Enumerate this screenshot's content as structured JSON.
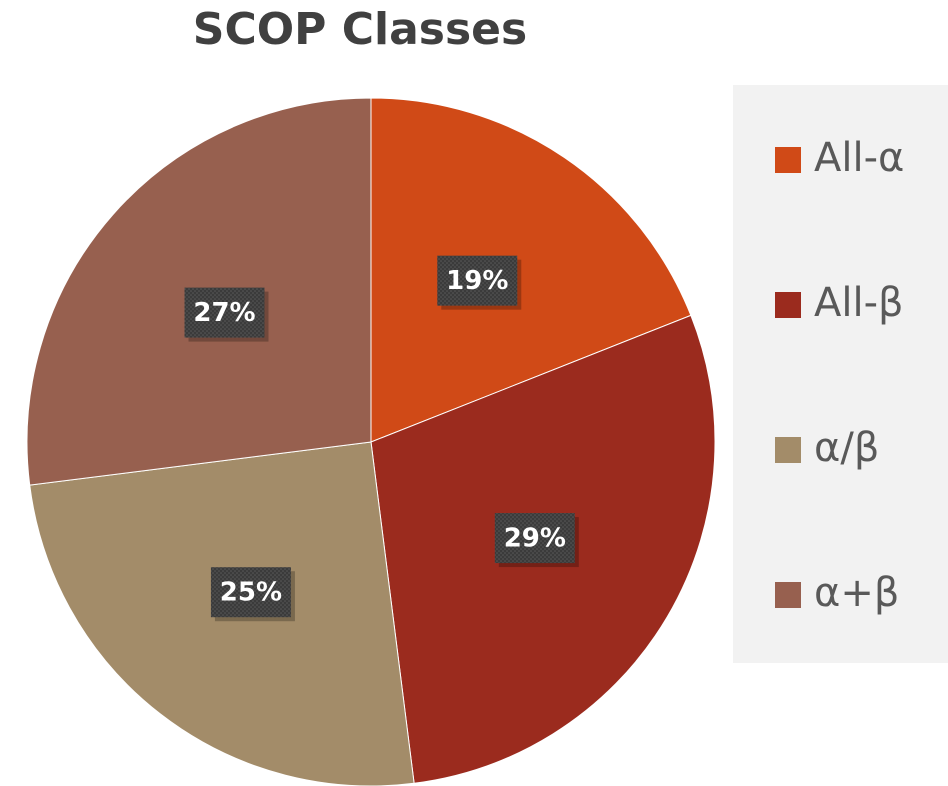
{
  "chart_data": {
    "type": "pie",
    "title": "SCOP Classes",
    "categories": [
      "All-α",
      "All-β",
      "α/β",
      "α+β"
    ],
    "values": [
      19,
      29,
      25,
      27
    ],
    "value_labels": [
      "19%",
      "29%",
      "25%",
      "27%"
    ],
    "colors": [
      "#d04a17",
      "#9b2b1e",
      "#a38c69",
      "#97604f"
    ],
    "legend": "right"
  }
}
